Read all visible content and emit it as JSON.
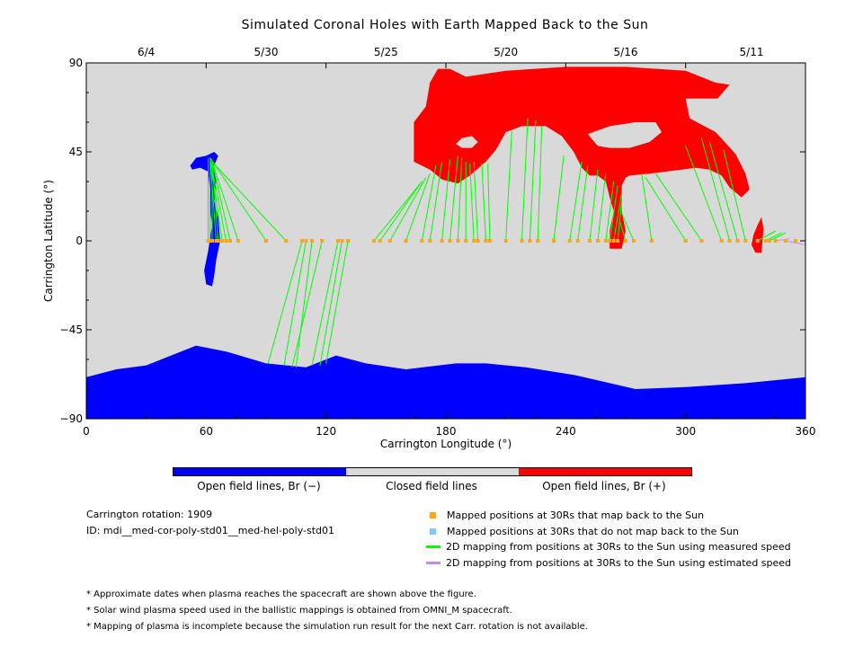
{
  "chart_data": {
    "type": "map",
    "title": "Simulated Coronal Holes with Earth Mapped Back to the Sun",
    "xlabel": "Carrington Longitude (°)",
    "ylabel": "Carrington Latitude (°)",
    "xlim": [
      0,
      360
    ],
    "ylim": [
      -90,
      90
    ],
    "x_ticks": [
      "0",
      "60",
      "120",
      "180",
      "240",
      "300",
      "360"
    ],
    "y_ticks": [
      "90",
      "45",
      "0",
      "−45",
      "−90"
    ],
    "top_dates": [
      {
        "label": "6/4",
        "lon": 30
      },
      {
        "label": "5/30",
        "lon": 90
      },
      {
        "label": "5/25",
        "lon": 150
      },
      {
        "label": "5/20",
        "lon": 210
      },
      {
        "label": "5/16",
        "lon": 270
      },
      {
        "label": "5/11",
        "lon": 333
      }
    ],
    "regions": [
      {
        "name": "Open field lines, Br (−)",
        "color": "#0000ff"
      },
      {
        "name": "Closed field lines",
        "color": "#d9d9d9"
      },
      {
        "name": "Open field lines, Br (+)",
        "color": "#ff0000"
      }
    ],
    "south_hole_lat": [
      [
        0,
        -69
      ],
      [
        15,
        -65
      ],
      [
        30,
        -63
      ],
      [
        45,
        -57
      ],
      [
        55,
        -53
      ],
      [
        70,
        -56
      ],
      [
        90,
        -62
      ],
      [
        110,
        -64
      ],
      [
        125,
        -58
      ],
      [
        140,
        -62
      ],
      [
        160,
        -65
      ],
      [
        185,
        -62
      ],
      [
        200,
        -62
      ],
      [
        220,
        -64
      ],
      [
        245,
        -68
      ],
      [
        275,
        -75
      ],
      [
        300,
        -74
      ],
      [
        330,
        -72
      ],
      [
        360,
        -69
      ]
    ],
    "measured_speed_mappings": [
      [
        61,
        0,
        61,
        42
      ],
      [
        62,
        0,
        62,
        42
      ],
      [
        63,
        0,
        63,
        40
      ],
      [
        65,
        0,
        62,
        42
      ],
      [
        66,
        0,
        63,
        40
      ],
      [
        68,
        0,
        62,
        42
      ],
      [
        70,
        0,
        62,
        42
      ],
      [
        72,
        0,
        63,
        40
      ],
      [
        76,
        0,
        63,
        40
      ],
      [
        90,
        0,
        62,
        42
      ],
      [
        100,
        0,
        63,
        40
      ],
      [
        108,
        0,
        91,
        -62
      ],
      [
        110,
        0,
        99,
        -63
      ],
      [
        113,
        0,
        105,
        -64
      ],
      [
        118,
        0,
        103,
        -64
      ],
      [
        126,
        0,
        113,
        -63
      ],
      [
        128,
        0,
        117,
        -63
      ],
      [
        131,
        0,
        120,
        -62
      ],
      [
        144,
        0,
        168,
        30
      ],
      [
        147,
        0,
        168,
        30
      ],
      [
        152,
        0,
        170,
        32
      ],
      [
        160,
        0,
        172,
        34
      ],
      [
        168,
        0,
        175,
        38
      ],
      [
        172,
        0,
        178,
        40
      ],
      [
        178,
        0,
        182,
        41
      ],
      [
        182,
        0,
        186,
        43
      ],
      [
        186,
        0,
        188,
        42
      ],
      [
        190,
        0,
        190,
        40
      ],
      [
        194,
        0,
        192,
        39
      ],
      [
        196,
        0,
        194,
        40
      ],
      [
        200,
        0,
        198,
        39
      ],
      [
        202,
        0,
        201,
        39
      ],
      [
        210,
        0,
        213,
        56
      ],
      [
        218,
        0,
        221,
        62
      ],
      [
        222,
        0,
        225,
        61
      ],
      [
        226,
        0,
        228,
        58
      ],
      [
        234,
        0,
        239,
        43
      ],
      [
        242,
        0,
        248,
        40
      ],
      [
        246,
        0,
        251,
        38
      ],
      [
        252,
        0,
        256,
        36
      ],
      [
        256,
        0,
        260,
        34
      ],
      [
        260,
        0,
        264,
        30
      ],
      [
        262,
        0,
        266,
        28
      ],
      [
        264,
        0,
        268,
        24
      ],
      [
        266,
        0,
        268,
        20
      ],
      [
        270,
        0,
        267,
        10
      ],
      [
        274,
        0,
        268,
        14
      ],
      [
        283,
        0,
        278,
        34
      ],
      [
        300,
        0,
        280,
        32
      ],
      [
        308,
        0,
        285,
        34
      ],
      [
        318,
        0,
        300,
        48
      ],
      [
        322,
        0,
        308,
        52
      ],
      [
        326,
        0,
        312,
        50
      ],
      [
        330,
        0,
        319,
        46
      ],
      [
        336,
        0,
        345,
        5
      ],
      [
        340,
        0,
        348,
        4
      ],
      [
        342,
        0,
        350,
        4
      ]
    ],
    "estimated_speed_mappings": [
      [
        350,
        0,
        360,
        -2
      ],
      [
        345,
        0,
        352,
        1
      ]
    ],
    "mapped_positions_back_to_sun": [
      61,
      62,
      63,
      65,
      66,
      68,
      70,
      72,
      76,
      90,
      100,
      108,
      110,
      113,
      118,
      126,
      128,
      131,
      144,
      147,
      152,
      160,
      168,
      172,
      178,
      182,
      186,
      190,
      194,
      196,
      200,
      202,
      210,
      218,
      222,
      226,
      234,
      242,
      246,
      252,
      256,
      260,
      262,
      264,
      266,
      270,
      274,
      283,
      300,
      308,
      318,
      322,
      326,
      330,
      336,
      340,
      342,
      345,
      350,
      355
    ]
  },
  "colorbar_labels": [
    "Open field lines, Br (−)",
    "Closed field lines",
    "Open field lines, Br (+)"
  ],
  "colors": {
    "negative_open": "#0000ff",
    "closed": "#d9d9d9",
    "positive_open": "#ff0000",
    "mapped_back": "#f5a623",
    "not_mapped_back": "#87c6f0",
    "measured_line": "#00ff00",
    "estimated_line": "#c58cf0"
  },
  "info": {
    "rotation": "Carrington rotation: 1909",
    "id": "ID: mdi__med-cor-poly-std01__med-hel-poly-std01"
  },
  "legend": [
    {
      "label": "Mapped positions at 30Rs that map back to the Sun",
      "kind": "square",
      "color": "#f5a623"
    },
    {
      "label": "Mapped positions at 30Rs that do not map back to the Sun",
      "kind": "square",
      "color": "#87c6f0"
    },
    {
      "label": "2D mapping from positions at 30Rs to the Sun using measured speed",
      "kind": "line",
      "color": "#00ff00"
    },
    {
      "label": "2D mapping from positions at 30Rs to the Sun using estimated speed",
      "kind": "line",
      "color": "#c58cf0"
    }
  ],
  "footnotes": [
    "* Approximate dates when plasma reaches the spacecraft are shown above the figure.",
    "* Solar wind plasma speed used in the ballistic mappings is obtained from OMNI_M spacecraft.",
    "* Mapping of plasma is incomplete because the simulation run result for the next Carr. rotation is not available."
  ]
}
